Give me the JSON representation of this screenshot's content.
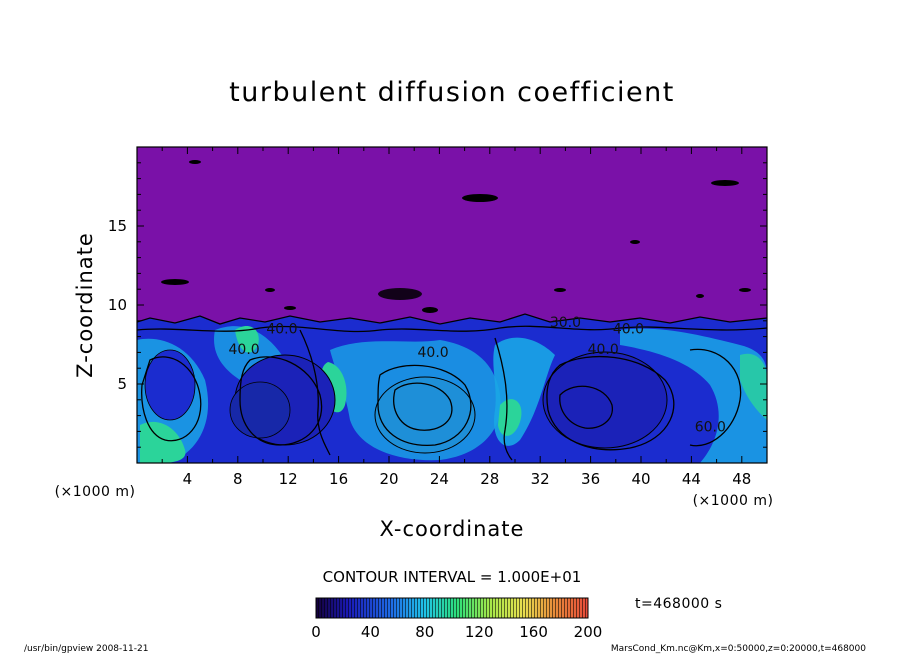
{
  "chart_data": {
    "type": "heatmap",
    "title": "turbulent diffusion coefficient",
    "xlabel": "X-coordinate",
    "ylabel": "Z-coordinate",
    "x_unit": "(×1000 m)",
    "y_unit": "(×1000 m)",
    "x_ticks": [
      4,
      8,
      12,
      16,
      20,
      24,
      28,
      32,
      36,
      40,
      44,
      48
    ],
    "y_ticks": [
      5,
      10,
      15
    ],
    "xlim": [
      0,
      50
    ],
    "ylim": [
      0,
      20
    ],
    "contour_interval": "CONTOUR INTERVAL = 1.000E+01",
    "time_label": "t=468000 s",
    "colorbar": {
      "ticks": [
        0,
        40,
        80,
        120,
        160,
        200
      ],
      "range": [
        0,
        200
      ]
    },
    "contour_labels": [
      {
        "text": "40.0",
        "x": 23.5,
        "z": 6.7
      },
      {
        "text": "40.0",
        "x": 37.0,
        "z": 6.9
      },
      {
        "text": "40.0",
        "x": 39.0,
        "z": 8.2
      },
      {
        "text": "40.0",
        "x": 8.5,
        "z": 6.9
      },
      {
        "text": "40.0",
        "x": 11.5,
        "z": 8.2
      },
      {
        "text": "30.0",
        "x": 34.0,
        "z": 8.6
      },
      {
        "text": "60.0",
        "x": 45.5,
        "z": 2.0
      }
    ],
    "colors": {
      "upper_region": "#7a11a8",
      "low_values": "#1b2ccf",
      "mid_values": "#1aa6e6",
      "high_values": "#2bd49a"
    }
  },
  "footer": {
    "left": "/usr/bin/gpview   2008-11-21",
    "right": "MarsCond_Km.nc@Km,x=0:50000,z=0:20000,t=468000"
  }
}
